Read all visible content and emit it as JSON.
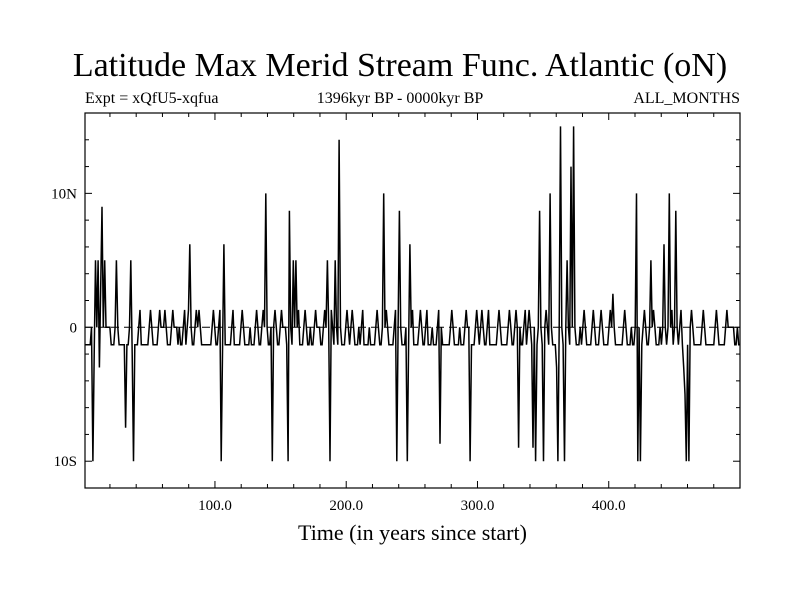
{
  "chart_data": {
    "type": "line",
    "title": "Latitude Max Merid Stream Func. Atlantic (oN)",
    "subtitle_left": "Expt = xQfU5-xqfua",
    "subtitle_center": "1396kyr BP - 0000kyr BP",
    "subtitle_right": "ALL_MONTHS",
    "xlabel": "Time (in years since start)",
    "ylabel": "",
    "xlim": [
      1,
      500
    ],
    "ylim": [
      -12,
      16
    ],
    "x_ticks": [
      100,
      200,
      300,
      400
    ],
    "x_tick_labels": [
      "100.0",
      "200.0",
      "300.0",
      "400.0"
    ],
    "y_ticks": [
      -10,
      0,
      10
    ],
    "y_tick_labels": [
      "10S",
      "0",
      "10N"
    ],
    "reference_line": 0,
    "series": [
      {
        "values": [
          -1.3,
          -1.3,
          -1.3,
          -1.3,
          -1.3,
          0,
          -10,
          -2,
          5,
          0,
          5,
          -3,
          3,
          9,
          0,
          5,
          0,
          0,
          0,
          0,
          -1.3,
          -1.3,
          -1.3,
          0,
          5,
          0,
          -1.3,
          -1.3,
          -1.3,
          -1.3,
          -1.3,
          -7.5,
          -1.3,
          -1.3,
          0,
          5,
          -2,
          -10,
          -1.3,
          -1.3,
          -1.3,
          0,
          1.3,
          -1.3,
          -1.3,
          -1.3,
          -1.3,
          -1.3,
          -1.3,
          0,
          1.3,
          0,
          -1.3,
          -1.3,
          -1.3,
          -1.3,
          0,
          1.3,
          0,
          0,
          0,
          1.3,
          0,
          -1.3,
          -1.3,
          -1.3,
          0,
          1.3,
          0,
          0,
          0,
          -1.3,
          0,
          -1.3,
          -1.3,
          0,
          1.3,
          -1.3,
          0,
          1.3,
          6.2,
          0,
          -1.3,
          -1.3,
          0,
          1.3,
          0,
          1.3,
          0,
          -1.3,
          -1.3,
          -1.3,
          -1.3,
          -1.3,
          -1.3,
          -1.3,
          -1.3,
          0,
          1.3,
          0,
          -1.3,
          -1.3,
          0,
          1.3,
          -10,
          -1.3,
          6.2,
          -1.3,
          -1.3,
          -1.3,
          -1.3,
          -1.3,
          0,
          1.3,
          -1.3,
          -1.3,
          -1.3,
          -1.3,
          -1.3,
          0,
          1.3,
          0,
          -1.3,
          -1.3,
          -1.3,
          -1.3,
          0,
          -1.3,
          -1.3,
          -1.3,
          0,
          1.3,
          0,
          -1.3,
          -1.3,
          0,
          1.3,
          0,
          10,
          0,
          -1.3,
          -1.3,
          0,
          -10,
          0,
          1.3,
          0,
          -1.3,
          -1.3,
          0,
          1.3,
          0,
          0,
          0,
          -1.3,
          -10,
          8.7,
          0,
          -1.3,
          5,
          0,
          5,
          0,
          1.3,
          -1.3,
          -1.3,
          -1.3,
          0,
          1.3,
          0,
          -1.3,
          -1.3,
          0,
          -1.3,
          -1.3,
          0,
          1.3,
          0,
          0,
          0,
          -1.3,
          -1.3,
          0,
          1.3,
          0,
          5,
          0,
          -10,
          1.3,
          0,
          -1.3,
          5,
          0,
          -1.3,
          14,
          0,
          -1.3,
          -1.3,
          -1.3,
          0,
          1.3,
          0,
          -1.3,
          0,
          1.3,
          0,
          -1.3,
          -1.3,
          -1.3,
          0,
          -1.3,
          0,
          1.3,
          -1.3,
          -1.3,
          -1.3,
          -1.3,
          0,
          -1.3,
          -1.3,
          -1.3,
          -1.3,
          0,
          1.3,
          0,
          -1.3,
          -1.3,
          0,
          10,
          0,
          1.3,
          0,
          -1.3,
          -1.3,
          -1.3,
          -1.3,
          0,
          1.3,
          -10,
          0,
          8.7,
          0,
          -1.3,
          -1.3,
          -1.3,
          0,
          -10,
          -1.3,
          6.2,
          0,
          1.3,
          -1.3,
          -1.3,
          -1.3,
          -1.3,
          0,
          1.3,
          0,
          -1.3,
          -1.3,
          0,
          1.3,
          -1.3,
          -1.3,
          -1.3,
          0,
          -1.3,
          -1.3,
          -1.3,
          0,
          1.3,
          -8.7,
          0,
          -1.3,
          -1.3,
          -1.3,
          -1.3,
          -1.3,
          -1.3,
          0,
          1.3,
          0,
          -1.3,
          -1.3,
          -1.3,
          -1.3,
          0,
          -1.3,
          -1.3,
          -1.3,
          0,
          1.3,
          0,
          0,
          -10,
          -1.3,
          -1.3,
          -1.3,
          0,
          1.3,
          0,
          -1.3,
          0,
          1.3,
          0,
          -1.3,
          -1.3,
          0,
          1.3,
          -1.3,
          -1.3,
          -1.3,
          -1.3,
          -1.3,
          -1.3,
          0,
          1.3,
          0,
          -1.3,
          -1.3,
          -1.3,
          -1.3,
          -1.3,
          0,
          1.3,
          0,
          -1.3,
          -1.3,
          0,
          1.3,
          0,
          -9,
          0,
          -1.3,
          -1.3,
          0,
          1.3,
          -1.3,
          0,
          1.3,
          0,
          -1.3,
          -9,
          0,
          -10,
          -1.3,
          0,
          8.7,
          0,
          -1.3,
          -10,
          0,
          1.3,
          0,
          -1.3,
          10,
          0,
          -1.3,
          -1.3,
          -1.3,
          -3,
          -10,
          0,
          15,
          0,
          -1.3,
          -10,
          0,
          5,
          0,
          -1.3,
          12,
          0,
          15,
          0,
          -1.3,
          -1.3,
          -1.3,
          0,
          -1.3,
          0,
          1.3,
          0,
          -1.3,
          -1.3,
          -1.3,
          -1.3,
          0,
          1.3,
          0,
          -1.3,
          -1.3,
          -1.3,
          0,
          1.3,
          0,
          -1.3,
          -1.3,
          -1.3,
          -1.3,
          0,
          1.3,
          0,
          2.5,
          0,
          -1.3,
          -1.3,
          -1.3,
          -1.3,
          -1.3,
          -1.3,
          0,
          1.3,
          0,
          -1.3,
          -1.3,
          -1.3,
          0,
          -1.3,
          -1.3,
          0,
          10,
          -10,
          0,
          -10,
          -1.3,
          0,
          1.3,
          0,
          -1.3,
          -1.3,
          0,
          5,
          0,
          1.3,
          0,
          -1.3,
          -1.3,
          -1.3,
          0,
          -1.3,
          0,
          6.2,
          0,
          -1.3,
          0,
          10,
          0,
          1.3,
          -1.3,
          0,
          8.7,
          0,
          -1.3,
          0,
          1.3,
          -1.3,
          -3,
          -5,
          -10,
          -1.3,
          -10,
          0,
          1.3,
          0,
          -1.3,
          -1.3,
          -1.3,
          -1.3,
          -1.3,
          -1.3,
          0,
          1.3,
          0,
          -1.3,
          -1.3,
          -1.3,
          -1.3,
          -1.3,
          -1.3,
          -1.3,
          0,
          1.3,
          0,
          -1.3,
          -1.3,
          -1.3,
          -1.3,
          -1.3,
          0,
          1.3,
          0,
          0,
          0,
          0,
          0,
          -1.3,
          -1.3,
          0,
          -1.3,
          -1.3
        ]
      }
    ]
  }
}
